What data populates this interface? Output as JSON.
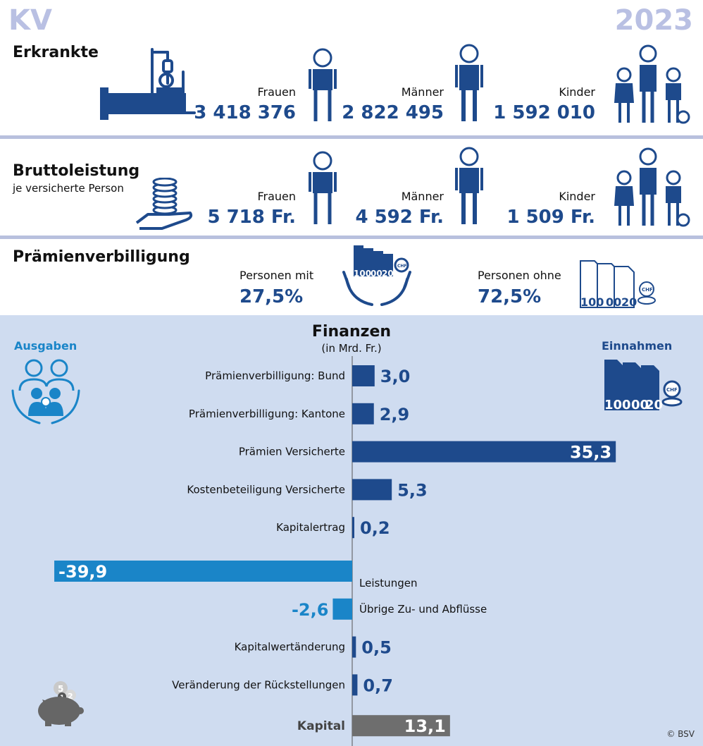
{
  "header": {
    "left_title": "KV",
    "year": "2023"
  },
  "erkrankte": {
    "title": "Erkrankte",
    "groups": [
      {
        "label": "Frauen",
        "value": "3 418 376"
      },
      {
        "label": "Männer",
        "value": "2 822 495"
      },
      {
        "label": "Kinder",
        "value": "1 592 010"
      }
    ]
  },
  "brutto": {
    "title": "Bruttoleistung",
    "subtitle": "je versicherte Person",
    "groups": [
      {
        "label": "Frauen",
        "value": "5 718 Fr."
      },
      {
        "label": "Männer",
        "value": "4 592 Fr."
      },
      {
        "label": "Kinder",
        "value": "1 509 Fr."
      }
    ]
  },
  "praemien": {
    "title": "Prämienverbilligung",
    "with_label": "Personen mit",
    "with_value": "27,5%",
    "without_label": "Personen ohne",
    "without_value": "72,5%",
    "money_text": "100",
    "money_text2": "00",
    "money_text3": "20",
    "chf": "CHF"
  },
  "finanzen": {
    "title": "Finanzen",
    "subtitle": "(in Mrd. Fr.)",
    "left_label": "Ausgaben",
    "right_label": "Einnahmen",
    "coin_numbers": [
      "5",
      "1",
      "2"
    ]
  },
  "colors": {
    "income": "#1e4a8c",
    "expense": "#1a85c8",
    "capital": "#6e6e6e",
    "bg": "#cfdcf0",
    "separator": "#b8c0de"
  },
  "copyright": "© BSV",
  "chart_data": {
    "type": "bar",
    "orientation": "horizontal",
    "title": "Finanzen",
    "subtitle": "(in Mrd. Fr.)",
    "categories": [
      "Prämienverbilligung: Bund",
      "Prämienverbilligung: Kantone",
      "Prämien Versicherte",
      "Kostenbeteiligung Versicherte",
      "Kapitalertrag",
      "Leistungen",
      "Übrige Zu- und Abflüsse",
      "Kapitalwertänderung",
      "Veränderung der Rückstellungen",
      "Kapital"
    ],
    "values": [
      3.0,
      2.9,
      35.3,
      5.3,
      0.2,
      -39.9,
      -2.6,
      0.5,
      0.7,
      13.1
    ],
    "value_labels": [
      "3,0",
      "2,9",
      "35,3",
      "5,3",
      "0,2",
      "-39,9",
      "-2,6",
      "0,5",
      "0,7",
      "13,1"
    ],
    "xlim": [
      -42,
      50
    ],
    "grid": false
  }
}
